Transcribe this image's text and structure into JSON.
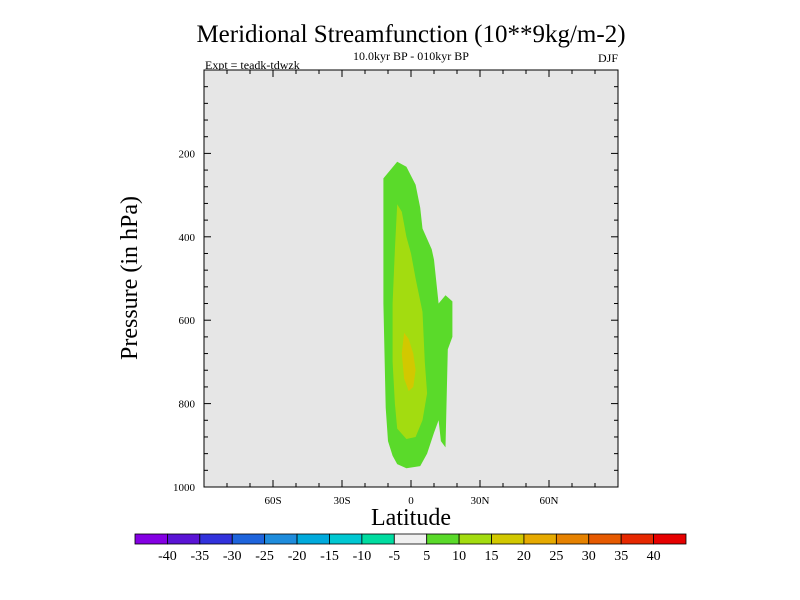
{
  "chart_data": {
    "type": "contour",
    "title": "Meridional Streamfunction (10**9kg/m-2)",
    "subtitle_center": "10.0kyr BP - 010kyr BP",
    "subtitle_left": "Expt = teadk-tdwzk",
    "subtitle_right": "DJF",
    "xlabel": "Latitude",
    "ylabel": "Pressure (in hPa)",
    "xlim": [
      -90,
      90
    ],
    "ylim": [
      1000,
      0
    ],
    "x_ticks": [
      {
        "value": -60,
        "label": "60S"
      },
      {
        "value": -30,
        "label": "30S"
      },
      {
        "value": 0,
        "label": "0"
      },
      {
        "value": 30,
        "label": "30N"
      },
      {
        "value": 60,
        "label": "60N"
      }
    ],
    "y_ticks": [
      {
        "value": 200,
        "label": "200"
      },
      {
        "value": 400,
        "label": "400"
      },
      {
        "value": 600,
        "label": "600"
      },
      {
        "value": 800,
        "label": "800"
      },
      {
        "value": 1000,
        "label": "1000"
      }
    ],
    "background_color": "#e6e6e6",
    "contours": [
      {
        "level": 5,
        "color": "#5ada2a",
        "points": [
          [
            -12,
            260
          ],
          [
            -6,
            220
          ],
          [
            -2,
            232
          ],
          [
            2,
            275
          ],
          [
            4,
            330
          ],
          [
            5,
            380
          ],
          [
            9,
            430
          ],
          [
            10,
            455
          ],
          [
            12,
            560
          ],
          [
            15,
            540
          ],
          [
            18,
            555
          ],
          [
            18,
            640
          ],
          [
            16,
            670
          ],
          [
            15,
            905
          ],
          [
            13,
            890
          ],
          [
            12,
            840
          ],
          [
            10,
            870
          ],
          [
            7,
            920
          ],
          [
            4,
            950
          ],
          [
            -2,
            955
          ],
          [
            -6,
            945
          ],
          [
            -8,
            925
          ],
          [
            -10,
            890
          ],
          [
            -11,
            810
          ],
          [
            -12,
            560
          ]
        ]
      },
      {
        "level": 10,
        "color": "#a3dc10",
        "points": [
          [
            -6,
            322
          ],
          [
            -4,
            340
          ],
          [
            -2,
            400
          ],
          [
            0,
            440
          ],
          [
            2,
            500
          ],
          [
            5,
            580
          ],
          [
            6,
            700
          ],
          [
            7,
            775
          ],
          [
            5,
            840
          ],
          [
            2,
            880
          ],
          [
            -2,
            885
          ],
          [
            -6,
            860
          ],
          [
            -7,
            800
          ],
          [
            -8,
            700
          ],
          [
            -8,
            560
          ],
          [
            -7,
            430
          ]
        ]
      },
      {
        "level": 20,
        "color": "#d2c800",
        "points": [
          [
            -3,
            630
          ],
          [
            -1,
            645
          ],
          [
            1,
            680
          ],
          [
            2,
            720
          ],
          [
            1,
            760
          ],
          [
            -1,
            770
          ],
          [
            -3,
            740
          ],
          [
            -4,
            680
          ]
        ]
      }
    ],
    "colorbar": {
      "labels": [
        "-40",
        "-35",
        "-30",
        "-25",
        "-20",
        "-15",
        "-10",
        "-5",
        "5",
        "10",
        "15",
        "20",
        "25",
        "30",
        "35",
        "40"
      ],
      "colors": [
        "#8400e3",
        "#5a14d5",
        "#3232dc",
        "#1e64dc",
        "#1e8cdc",
        "#00aadc",
        "#00c8d2",
        "#00dca0",
        "#f0f0f0",
        "#5ada2a",
        "#a3dc10",
        "#d2c800",
        "#e6aa00",
        "#e68200",
        "#e65a00",
        "#e62800",
        "#e60000"
      ]
    }
  }
}
